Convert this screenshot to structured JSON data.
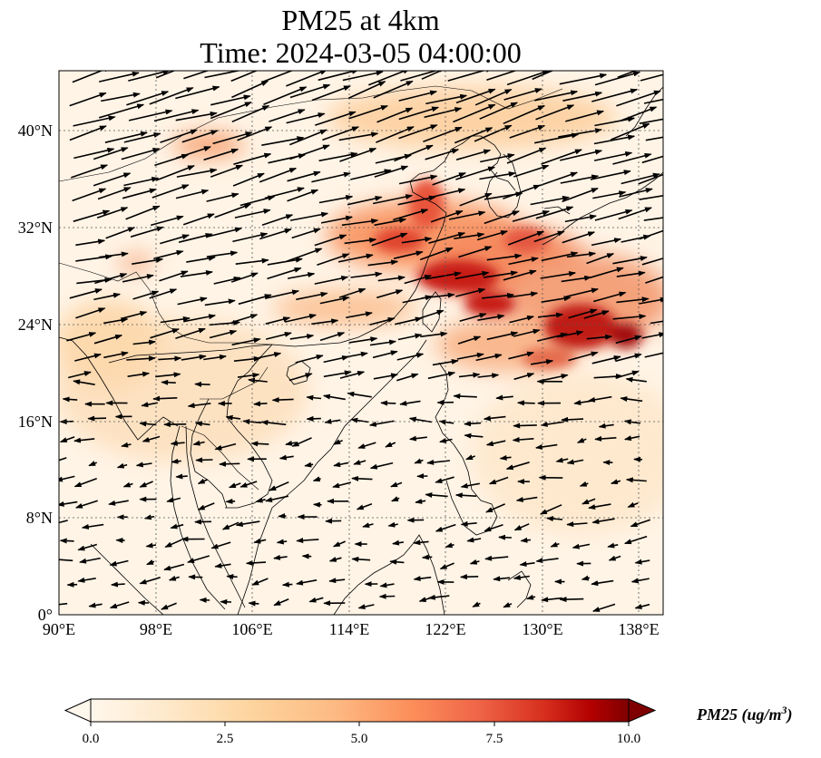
{
  "title_line1": "PM25 at 4km",
  "title_line2": "Time: 2024-03-05 04:00:00",
  "map": {
    "lon_range": [
      90,
      140
    ],
    "lat_range": [
      0,
      45
    ],
    "lon_ticks": [
      "90°E",
      "98°E",
      "106°E",
      "114°E",
      "122°E",
      "130°E",
      "138°E"
    ],
    "lat_ticks": [
      "0°",
      "8°N",
      "16°N",
      "24°N",
      "32°N",
      "40°N"
    ],
    "gridlines": true,
    "variable": "PM25",
    "overlay": "wind vectors"
  },
  "colorbar": {
    "ticks": [
      "0.0",
      "2.5",
      "5.0",
      "7.5",
      "10.0"
    ],
    "label": "PM25 (ug/m",
    "label_sup": "3",
    "label_close": ")",
    "colormap": "OrRd",
    "min": 0,
    "max": 10,
    "extend": "both"
  },
  "colors": {
    "low": "#fff7ec",
    "mid": "#fdbb84",
    "high": "#d7301f",
    "max": "#7f0000"
  }
}
